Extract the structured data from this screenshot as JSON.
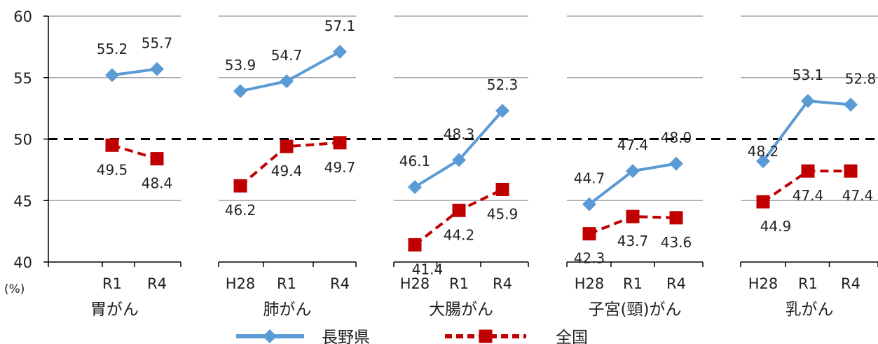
{
  "chart_data": {
    "type": "line",
    "ylabel": "(%)",
    "ylim": [
      40,
      60
    ],
    "yticks": [
      40,
      45,
      50,
      55,
      60
    ],
    "grid": true,
    "reference_line": 50,
    "legend_position": "bottom-center",
    "colors": {
      "nagano": "#5b9bd5",
      "national": "#c00000",
      "grid": "#a6a6a6",
      "axis": "#000000"
    },
    "groups": [
      {
        "name": "胃がん",
        "x": [
          "",
          "R1",
          "R4"
        ],
        "series": [
          {
            "name": "長野県",
            "values": [
              null,
              55.2,
              55.7
            ]
          },
          {
            "name": "全国",
            "values": [
              null,
              49.5,
              48.4
            ]
          }
        ]
      },
      {
        "name": "肺がん",
        "x": [
          "H28",
          "R1",
          "R4"
        ],
        "series": [
          {
            "name": "長野県",
            "values": [
              53.9,
              54.7,
              57.1
            ]
          },
          {
            "name": "全国",
            "values": [
              46.2,
              49.4,
              49.7
            ]
          }
        ]
      },
      {
        "name": "大腸がん",
        "x": [
          "H28",
          "R1",
          "R4"
        ],
        "series": [
          {
            "name": "長野県",
            "values": [
              46.1,
              48.3,
              52.3
            ]
          },
          {
            "name": "全国",
            "values": [
              41.4,
              44.2,
              45.9
            ]
          }
        ]
      },
      {
        "name": "子宮(頸)がん",
        "x": [
          "H28",
          "R1",
          "R4"
        ],
        "series": [
          {
            "name": "長野県",
            "values": [
              44.7,
              47.4,
              48.0
            ]
          },
          {
            "name": "全国",
            "values": [
              42.3,
              43.7,
              43.6
            ]
          }
        ]
      },
      {
        "name": "乳がん",
        "x": [
          "H28",
          "R1",
          "R4"
        ],
        "series": [
          {
            "name": "長野県",
            "values": [
              48.2,
              53.1,
              52.8
            ]
          },
          {
            "name": "全国",
            "values": [
              44.9,
              47.4,
              47.4
            ]
          }
        ]
      }
    ],
    "legend": [
      {
        "name": "長野県",
        "marker": "diamond",
        "line": "solid"
      },
      {
        "name": "全国",
        "marker": "square",
        "line": "dashed"
      }
    ]
  }
}
